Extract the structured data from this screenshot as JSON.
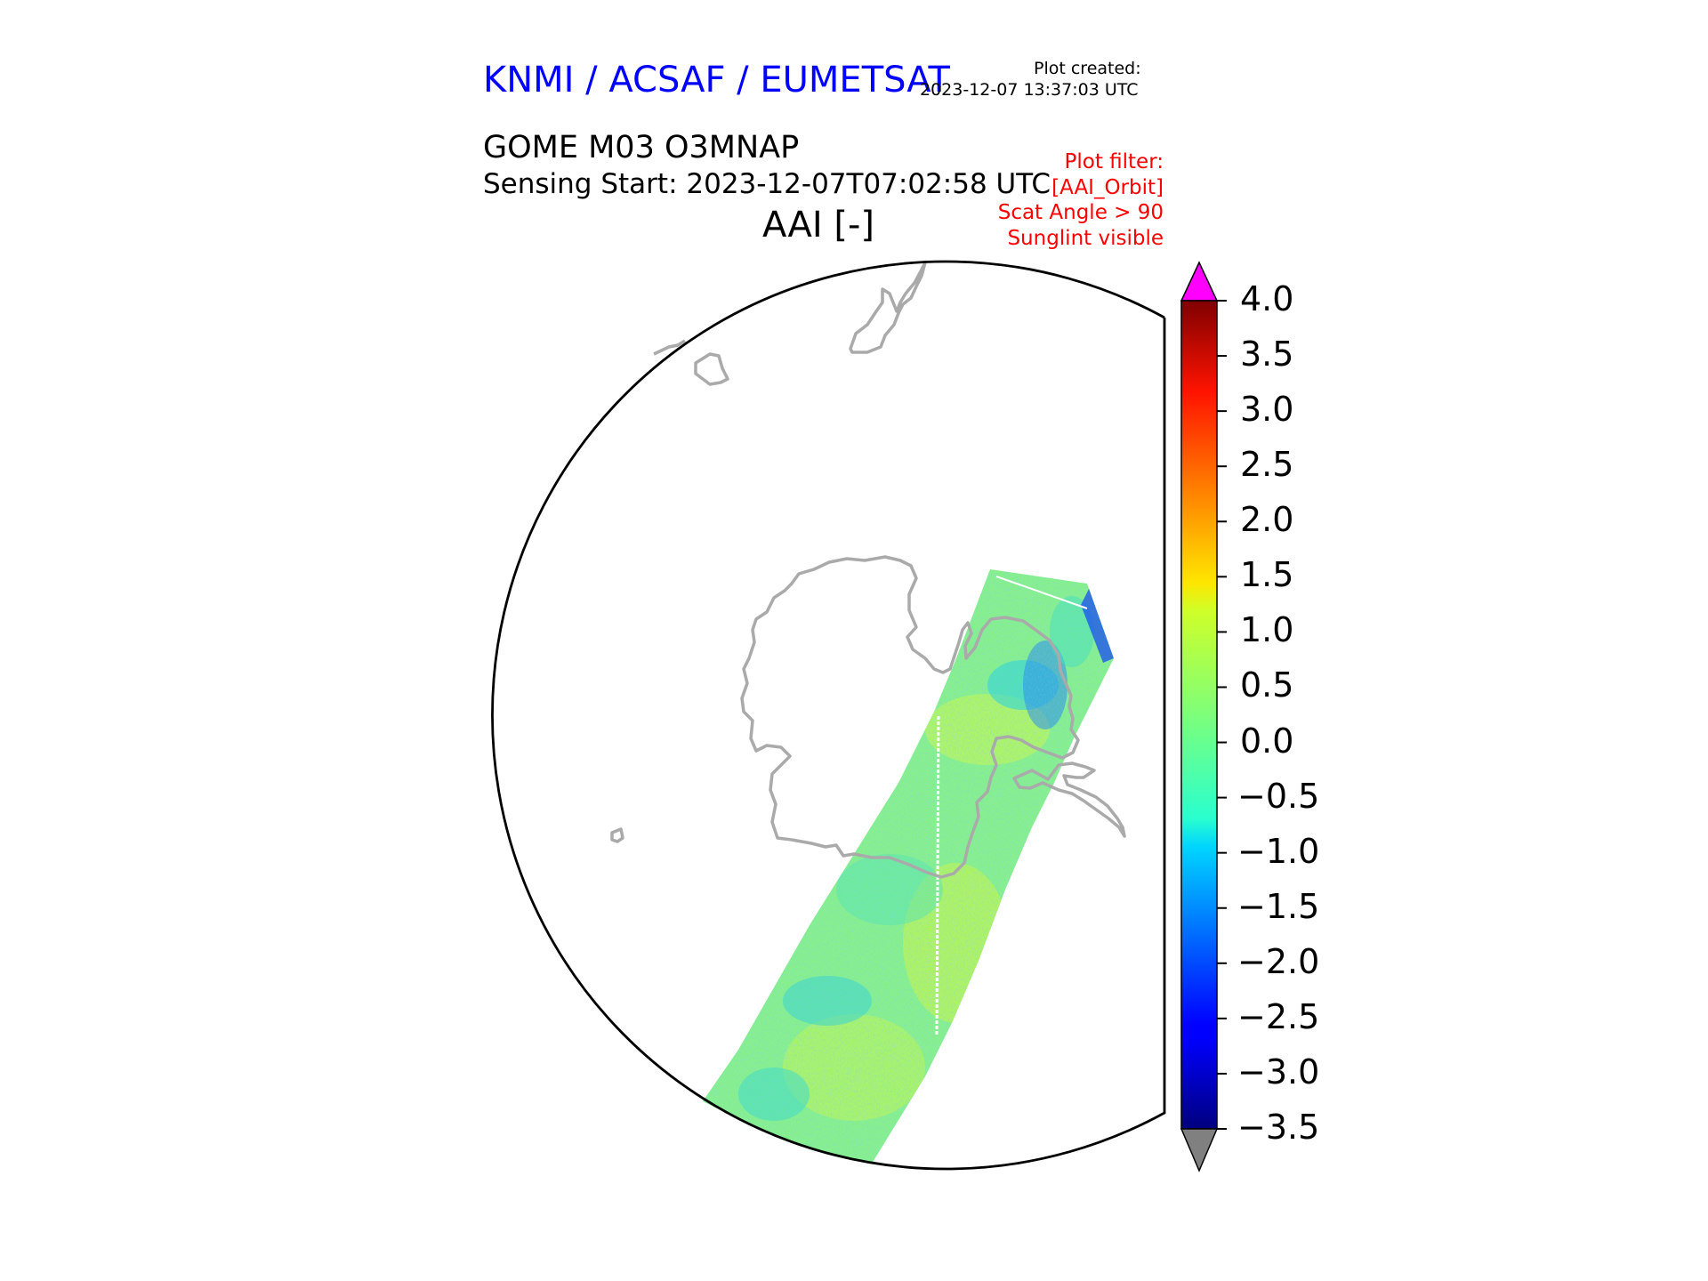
{
  "header": {
    "organization": "KNMI / ACSAF / EUMETSAT",
    "plot_created_label": "Plot created:",
    "plot_created_value": "2023-12-07 13:37:03 UTC",
    "product": "GOME M03 O3MNAP",
    "sensing_start": "Sensing Start: 2023-12-07T07:02:58 UTC",
    "filter": {
      "label": "Plot filter:",
      "lines": [
        "[AAI_Orbit]",
        "Scat Angle > 90",
        "Sunglint visible"
      ]
    },
    "map_title": "AAI [-]"
  },
  "map": {
    "projection": "south polar stereographic",
    "coastline_color": "#aaaaaa",
    "boundary_color": "#000000",
    "swath": "single satellite orbit swath of AAI values crossing the Antarctic Peninsula region"
  },
  "colorbar": {
    "variable": "AAI [-]",
    "min": -3.5,
    "max": 4.0,
    "colormap": "jet",
    "extend": "both",
    "under_color": "#808080",
    "over_color": "#ff00ff",
    "ticks": [
      "4.0",
      "3.5",
      "3.0",
      "2.5",
      "2.0",
      "1.5",
      "1.0",
      "0.5",
      "0.0",
      "−0.5",
      "−1.0",
      "−1.5",
      "−2.0",
      "−2.5",
      "−3.0",
      "−3.5"
    ]
  }
}
